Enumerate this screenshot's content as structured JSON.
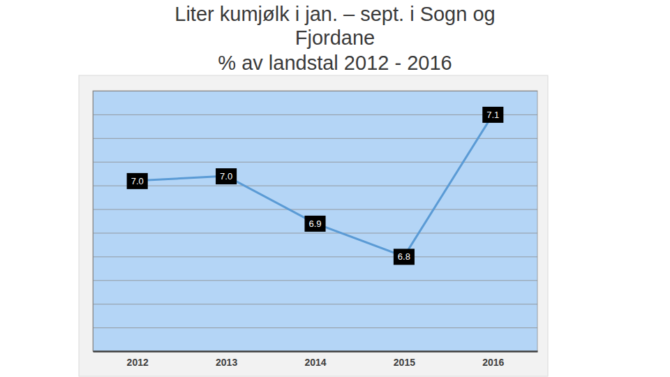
{
  "chart_data": {
    "type": "line",
    "title": "Liter kumjølk i jan. – sept. i Sogn og Fjordane",
    "subtitle": "% av landstal 2012 - 2016",
    "categories": [
      "2012",
      "2013",
      "2014",
      "2015",
      "2016"
    ],
    "values": [
      6.96,
      6.97,
      6.87,
      6.8,
      7.1
    ],
    "value_labels": [
      "7.0",
      "7.0",
      "6.9",
      "6.8",
      "7.1"
    ],
    "color": "#5b9bd5",
    "ylim": [
      6.6,
      7.15
    ],
    "yticks": [
      6.6,
      6.65,
      6.7,
      6.75,
      6.8,
      6.85,
      6.9,
      6.95,
      7.0,
      7.05,
      7.1,
      7.15
    ],
    "grid": true,
    "data_labels": true,
    "tick_labels": "x",
    "marker": "none"
  }
}
